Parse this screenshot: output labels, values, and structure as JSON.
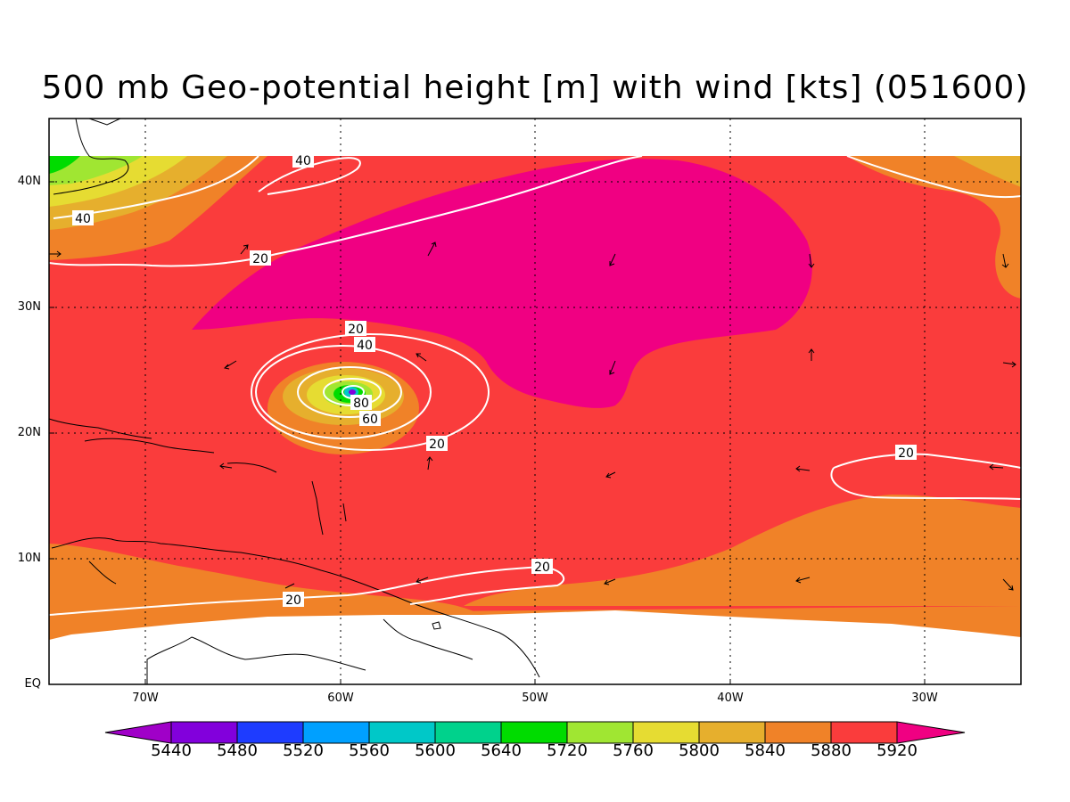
{
  "title": "500 mb Geo-potential height [m] with wind [kts] (051600)",
  "lat_labels": [
    "40N",
    "30N",
    "20N",
    "10N",
    "EQ"
  ],
  "lon_labels": [
    "70W",
    "60W",
    "50W",
    "40W",
    "30W"
  ],
  "colorbar": {
    "levels": [
      "5440",
      "5480",
      "5520",
      "5560",
      "5600",
      "5640",
      "5720",
      "5760",
      "5800",
      "5840",
      "5880",
      "5920"
    ],
    "colors": [
      "#a000c8",
      "#8200dc",
      "#1e3cff",
      "#00a0ff",
      "#00c8c8",
      "#00d28c",
      "#00dc00",
      "#a0e632",
      "#e6dc32",
      "#e6af2d",
      "#f08228",
      "#fa3c3c",
      "#f00082"
    ]
  },
  "wind_contour_labels": [
    "40",
    "40",
    "20",
    "20",
    "40",
    "80",
    "60",
    "20",
    "20",
    "20",
    "20"
  ],
  "fill_colors": {
    "green": "#00dc00",
    "light_green": "#a0e632",
    "yellow": "#e6dc32",
    "gold": "#e6af2d",
    "orange": "#f08228",
    "red": "#fa3c3c",
    "magenta": "#f00082"
  }
}
